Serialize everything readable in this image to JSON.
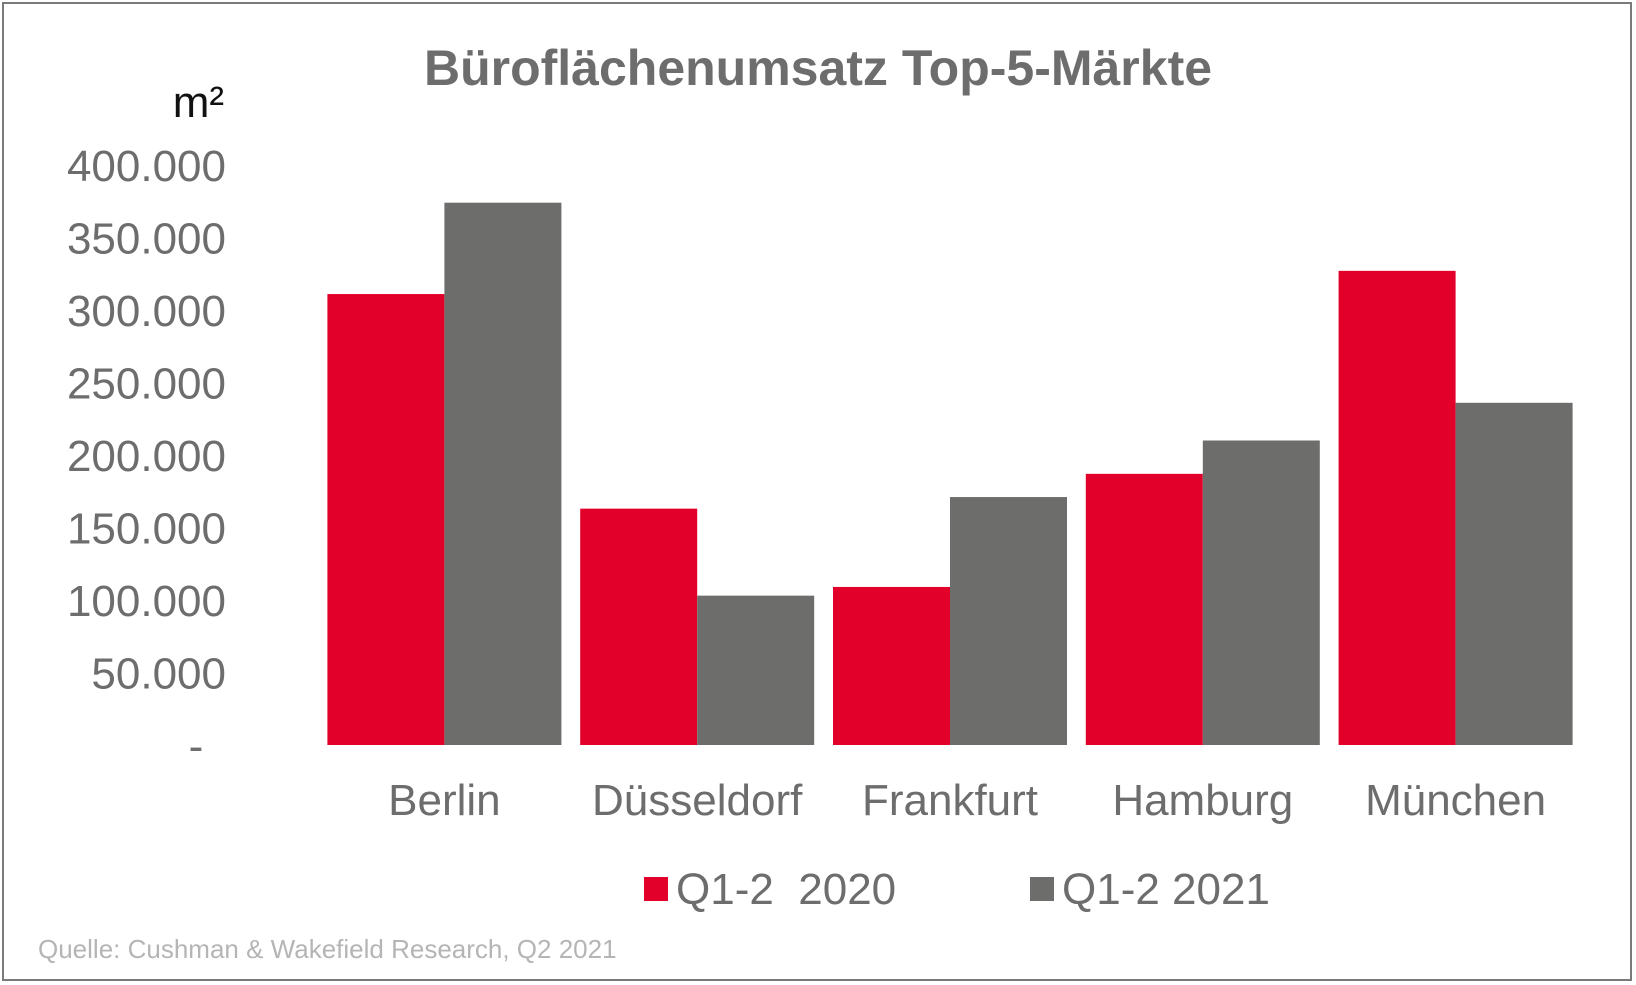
{
  "chart_data": {
    "type": "bar",
    "title": "Büroflächenumsatz Top-5-Märkte",
    "ylabel": "m²",
    "xlabel": "",
    "ylim": [
      0,
      400000
    ],
    "y_ticks": [
      0,
      50000,
      100000,
      150000,
      200000,
      250000,
      300000,
      350000,
      400000
    ],
    "y_tick_labels": [
      "-",
      "50.000",
      "100.000",
      "150.000",
      "200.000",
      "250.000",
      "300.000",
      "350.000",
      "400.000"
    ],
    "categories": [
      "Berlin",
      "Düsseldorf",
      "Frankfurt",
      "Hamburg",
      "München"
    ],
    "series": [
      {
        "name": "Q1-2  2020",
        "color": "#e2002a",
        "values": [
          311000,
          163000,
          109000,
          187000,
          327000
        ]
      },
      {
        "name": "Q1-2 2021",
        "color": "#6d6e6c",
        "values": [
          374000,
          103000,
          171000,
          210000,
          236000
        ]
      }
    ],
    "grid": false,
    "legend_position": "bottom"
  },
  "source_note": "Quelle: Cushman & Wakefield Research, Q2 2021"
}
